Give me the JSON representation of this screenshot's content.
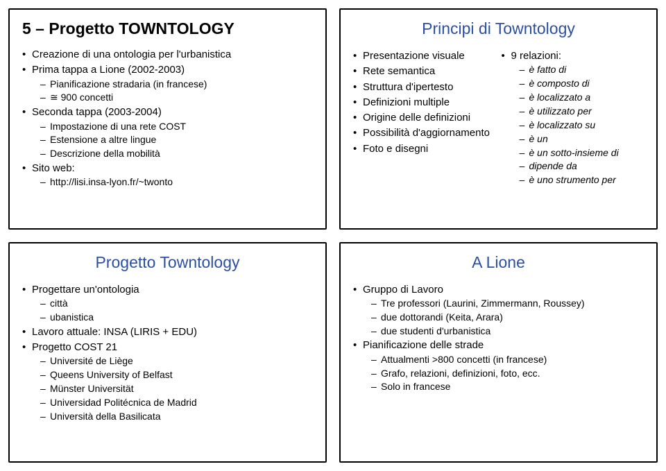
{
  "slide1": {
    "title": "5 – Progetto TOWNTOLOGY",
    "items": [
      {
        "t": "Creazione di una ontologia per l'urbanistica"
      },
      {
        "t": "Prima tappa a Lione (2002-2003)",
        "sub": [
          "Pianificazione stradaria (in francese)",
          "≅ 900 concetti"
        ]
      },
      {
        "t": "Seconda tappa (2003-2004)",
        "sub": [
          "Impostazione di una rete COST",
          "Estensione a altre lingue",
          "Descrizione della mobilità"
        ]
      },
      {
        "t": "Sito web:",
        "sub": [
          "http://lisi.insa-lyon.fr/~twonto"
        ]
      }
    ]
  },
  "slide2": {
    "title": "Principi di Towntology",
    "left": [
      "Presentazione visuale",
      "Rete semantica",
      "Struttura d'ipertesto",
      "Definizioni multiple",
      "Origine delle definizioni",
      "Possibilità d'aggiornamento",
      "Foto e disegni"
    ],
    "rightHead": "9 relazioni:",
    "right": [
      "è fatto di",
      "è composto di",
      "è localizzato a",
      "è utilizzato per",
      "è localizzato su",
      "è un",
      "è un sotto-insieme di",
      "dipende da",
      "è uno strumento per"
    ]
  },
  "slide3": {
    "title": "Progetto Towntology",
    "items": [
      {
        "t": "Progettare un'ontologia",
        "sub": [
          "città",
          "ubanistica"
        ]
      },
      {
        "t": "Lavoro attuale: INSA (LIRIS + EDU)"
      },
      {
        "t": "Progetto COST 21",
        "sub": [
          "Université de Liège",
          "Queens University of Belfast",
          "Münster Universität",
          "Universidad Politécnica de Madrid",
          "Università della Basilicata"
        ]
      }
    ]
  },
  "slide4": {
    "title": "A Lione",
    "items": [
      {
        "t": "Gruppo di Lavoro",
        "sub": [
          "Tre professori (Laurini, Zimmermann, Roussey)",
          "due dottorandi (Keita, Arara)",
          "due studenti d'urbanistica"
        ]
      },
      {
        "t": "Pianificazione delle strade",
        "sub": [
          "Attualmenti >800 concetti (in francese)",
          "Grafo, relazioni, definizioni, foto, ecc.",
          "Solo in francese"
        ]
      }
    ]
  }
}
